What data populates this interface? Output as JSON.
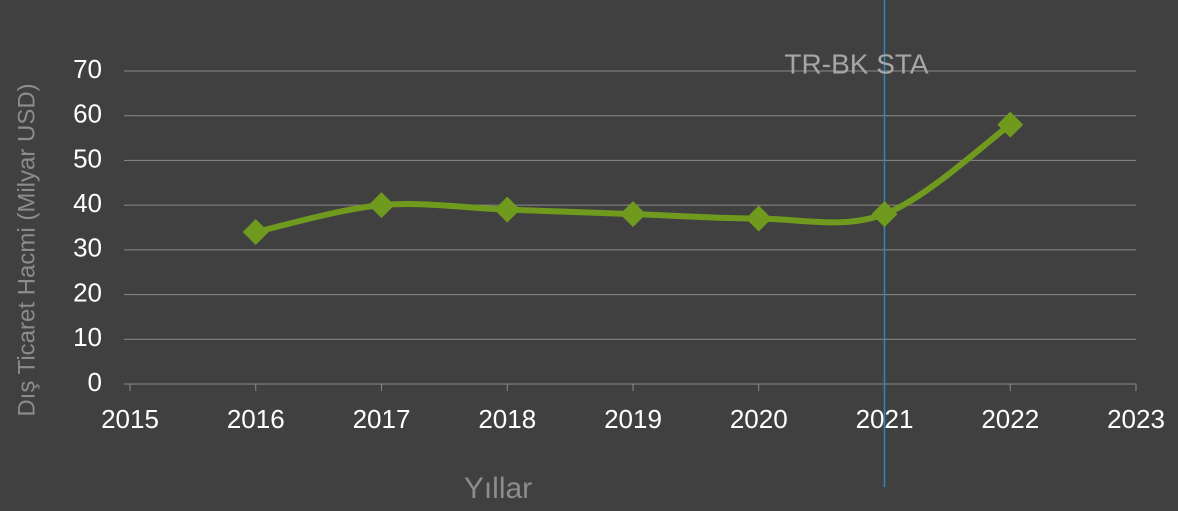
{
  "chart_data": {
    "type": "line",
    "x_label": "Yıllar",
    "y_label": "Dış Ticaret Hacmi (Milyar USD)",
    "x": [
      2016,
      2017,
      2018,
      2019,
      2020,
      2021,
      2022
    ],
    "series": [
      {
        "name": "Dış Ticaret Hacmi",
        "color": "#6f9a1e",
        "values": [
          34,
          40,
          39,
          38,
          37,
          38,
          58
        ]
      }
    ],
    "xlim": [
      2015,
      2023
    ],
    "xticks": [
      2015,
      2016,
      2017,
      2018,
      2019,
      2020,
      2021,
      2022,
      2023
    ],
    "ylim": [
      0,
      70
    ],
    "yticks": [
      0,
      10,
      20,
      30,
      40,
      50,
      60,
      70
    ],
    "grid": true,
    "smooth": true,
    "annotations": [
      {
        "text": "TR-BK STA",
        "x": 2021,
        "color": "#2e86c1"
      }
    ]
  }
}
